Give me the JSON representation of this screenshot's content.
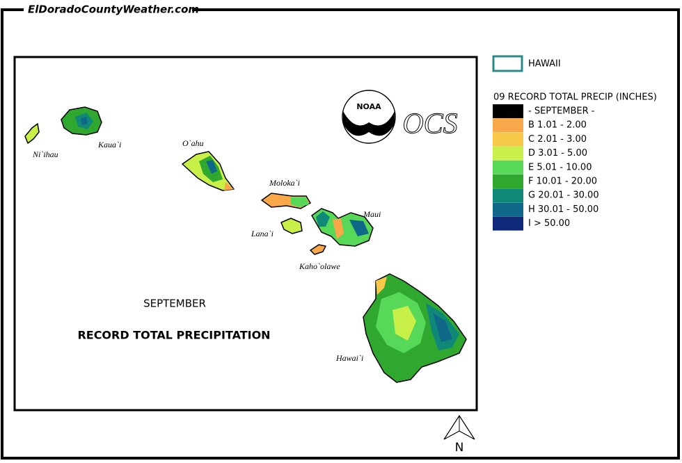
{
  "header": {
    "site": "ElDoradoCountyWeather.com"
  },
  "map": {
    "labels": [
      "Ni`ihau",
      "Kaua`i",
      "O`ahu",
      "Moloka`i",
      "Lana`i",
      "Maui",
      "Kaho`olawe",
      "Hawai`i"
    ],
    "month": "SEPTEMBER",
    "subtitle": "RECORD TOTAL PRECIPITATION",
    "logo": "NOAA",
    "ocs": "OCS",
    "north": "N"
  },
  "legend": {
    "region": "HAWAII",
    "region_color": "#2a8a8a",
    "title": "09 RECORD TOTAL PRECIP (INCHES)",
    "items": [
      {
        "label": "- SEPTEMBER -",
        "color": "#000000"
      },
      {
        "label": "B 1.01 - 2.00",
        "color": "#f8a848"
      },
      {
        "label": "C 2.01 - 3.00",
        "color": "#f8c848"
      },
      {
        "label": "D 3.01 - 5.00",
        "color": "#c8f048"
      },
      {
        "label": "E 5.01 - 10.00",
        "color": "#58d858"
      },
      {
        "label": "F 10.01 - 20.00",
        "color": "#30a830"
      },
      {
        "label": "G 20.01 - 30.00",
        "color": "#108878"
      },
      {
        "label": "H 30.01 - 50.00",
        "color": "#106888"
      },
      {
        "label": "I > 50.00",
        "color": "#102878"
      }
    ]
  }
}
